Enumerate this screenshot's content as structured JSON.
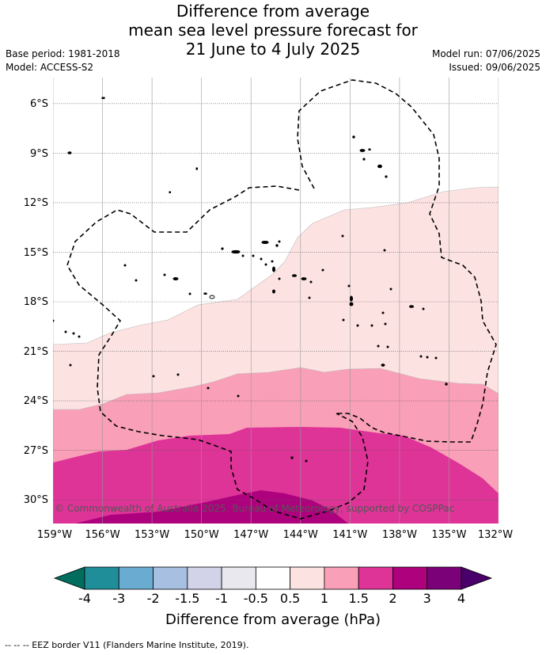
{
  "title_lines": [
    "Difference from average",
    "mean sea level pressure forecast for",
    "21 June to 4 July 2025"
  ],
  "base_period": "Base period: 1981-2018",
  "model": "Model: ACCESS-S2",
  "model_run": "Model run: 07/06/2025",
  "issued": "Issued: 09/06/2025",
  "copyright": "© Commonwealth of Australia 2025, Bureau of Meteorology, supported by COSPPac",
  "footer": "-- -- -- EEZ border V11 (Flanders Marine Institute, 2019).",
  "colorbar": {
    "label": "Difference from average (hPa)",
    "ticks": [
      "-4",
      "-3",
      "-2",
      "-1.5",
      "-1",
      "-0.5",
      "0.5",
      "1",
      "1.5",
      "2",
      "3",
      "4"
    ],
    "colors": [
      "#1f8e99",
      "#6aabd2",
      "#a7bfe1",
      "#d2d2e8",
      "#e8e8ee",
      "#ffffff",
      "#fde2e2",
      "#f99fb7",
      "#de3497",
      "#ae017e",
      "#7a0177"
    ],
    "under_color": "#006d5f",
    "over_color": "#49006a"
  },
  "chart_data": {
    "type": "heatmap",
    "xlabel": "",
    "ylabel": "",
    "x_ticks": [
      "159°W",
      "156°W",
      "153°W",
      "150°W",
      "147°W",
      "144°W",
      "141°W",
      "138°W",
      "135°W",
      "132°W"
    ],
    "y_ticks": [
      "6°S",
      "9°S",
      "12°S",
      "15°S",
      "18°S",
      "21°S",
      "24°S",
      "27°S",
      "30°S"
    ],
    "lon_range": [
      -159,
      -132
    ],
    "lat_range": [
      -31.5,
      -4.5
    ],
    "grid": true,
    "levels_hPa": {
      "0.5_to_1": "north-central band from about 24°S up to about 12°S in the east",
      "1_to_1.5": "band roughly 22°S to 27°S",
      "1.5_to_2": "south, roughly 26°S to 31°S",
      "2_to_3": "small area near 30°S–31.5°S, 147°W–141°W"
    }
  }
}
